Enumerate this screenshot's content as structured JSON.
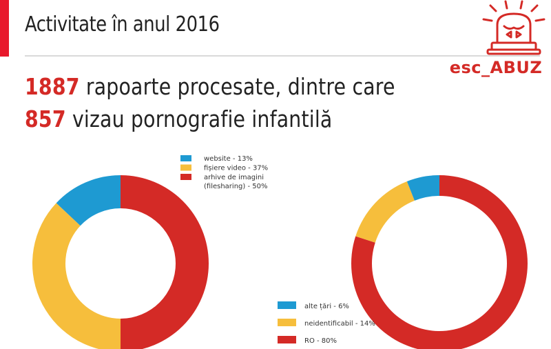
{
  "header": {
    "title": "Activitate în anul 2016"
  },
  "logo": {
    "text": "esc_ABUZ",
    "icon": "siren-icon"
  },
  "headline": {
    "line1": {
      "number": "1887",
      "text": "rapoarte procesate, dintre care"
    },
    "line2": {
      "number": "857",
      "text": "vizau pornografie infantilă"
    }
  },
  "colors": {
    "accent": "#e8192c",
    "red": "#d42a26",
    "yellow": "#f6be3c",
    "blue": "#1e9ad2"
  },
  "chart_data": [
    {
      "type": "pie",
      "legend_position": "top-right",
      "slices": [
        {
          "label": "website - 13%",
          "value": 13,
          "color": "#1e9ad2"
        },
        {
          "label": "fișiere video - 37%",
          "value": 37,
          "color": "#f6be3c"
        },
        {
          "label": "arhive de imagini (filesharing) - 50%",
          "label_lines": [
            "arhive de imagini",
            "(filesharing) - 50%"
          ],
          "value": 50,
          "color": "#d42a26"
        }
      ]
    },
    {
      "type": "pie",
      "legend_position": "bottom-left",
      "slices": [
        {
          "label": "alte țări - 6%",
          "value": 6,
          "color": "#1e9ad2"
        },
        {
          "label": "neidentificabil - 14%",
          "value": 14,
          "color": "#f6be3c"
        },
        {
          "label": "RO - 80%",
          "value": 80,
          "color": "#d42a26"
        }
      ]
    }
  ]
}
